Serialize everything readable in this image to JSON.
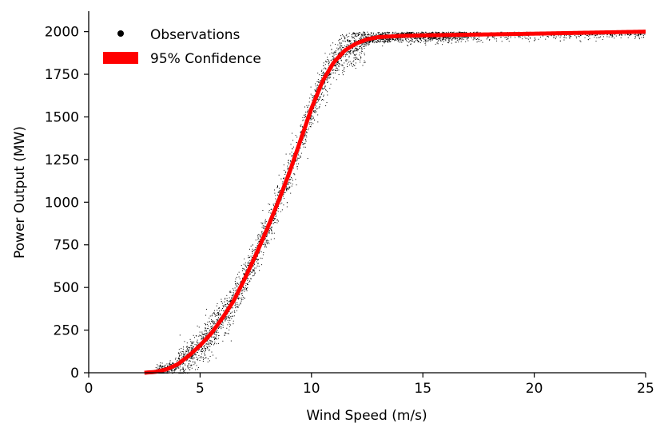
{
  "chart_data": {
    "type": "scatter",
    "xlabel": "Wind Speed (m/s)",
    "ylabel": "Power Output (MW)",
    "xlim": [
      0,
      25
    ],
    "ylim": [
      0,
      2120
    ],
    "xticks": [
      "0",
      "5",
      "10",
      "15",
      "20",
      "25"
    ],
    "xtick_values": [
      0,
      5,
      10,
      15,
      20,
      25
    ],
    "yticks": [
      "0",
      "250",
      "500",
      "750",
      "1000",
      "1250",
      "1500",
      "1750",
      "2000"
    ],
    "ytick_values": [
      0,
      250,
      500,
      750,
      1000,
      1250,
      1500,
      1750,
      2000
    ],
    "grid": false,
    "legend_position": "top-left",
    "legend": [
      "Observations",
      "95% Confidence"
    ],
    "colors": {
      "observations": "#000000",
      "confidence": "#ff0000"
    },
    "series": [
      {
        "name": "Observations",
        "kind": "scatter",
        "description_of_distribution": "points scattered around the power curve from about 3 to 25 m/s",
        "x_range": [
          3,
          25
        ]
      },
      {
        "name": "95% Confidence",
        "kind": "band",
        "x": [
          2.5,
          3,
          3.5,
          4,
          4.5,
          5,
          5.5,
          6,
          6.5,
          7,
          7.5,
          8,
          8.5,
          9,
          9.5,
          10,
          10.5,
          11,
          11.5,
          12,
          12.5,
          13,
          14,
          15,
          17,
          20,
          25
        ],
        "y": [
          0,
          5,
          20,
          50,
          100,
          160,
          230,
          320,
          420,
          550,
          690,
          840,
          1000,
          1170,
          1360,
          1550,
          1710,
          1820,
          1890,
          1930,
          1955,
          1968,
          1975,
          1978,
          1982,
          1988,
          2000
        ]
      }
    ]
  }
}
